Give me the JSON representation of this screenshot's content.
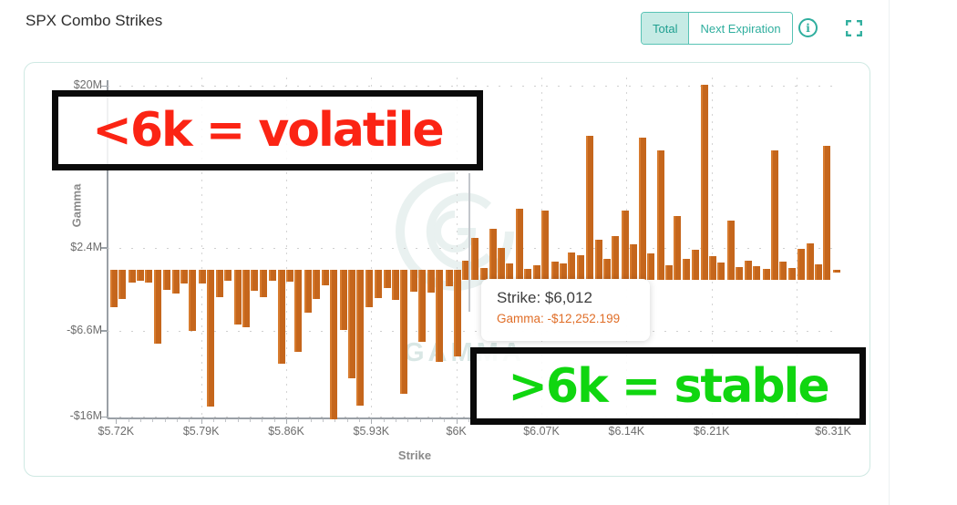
{
  "header": {
    "title": "SPX Combo Strikes",
    "toggle": {
      "options": [
        "Total",
        "Next Expiration"
      ],
      "selected": "Total"
    },
    "info_icon": "i",
    "fullscreen_icon": "expand-corners"
  },
  "colors": {
    "accent_teal": "#2fae9e",
    "toggle_selected_bg": "#c6ebe5",
    "bar_orange": "#c5661c",
    "tooltip_gamma_orange": "#e06e28",
    "annotation_red": "#fb2414",
    "annotation_green": "#10d610",
    "axis_gray": "#9aa0a6",
    "card_border": "#cfe9e3"
  },
  "tooltip": {
    "strike": "Strike: $6,012",
    "gamma": "Gamma: -$12,252.199"
  },
  "annotations": {
    "left": {
      "text": "<6k = volatile",
      "color": "#fb2414"
    },
    "right": {
      "text": ">6k = stable",
      "color": "#10d610"
    }
  },
  "watermark": {
    "text": "GAMMA"
  },
  "chart_data": {
    "type": "bar",
    "title": "SPX Combo Strikes",
    "xlabel": "Strike",
    "ylabel": "Gamma",
    "legend": "none",
    "grid": "dotted",
    "x_range": [
      5713,
      6313
    ],
    "y_range_millions": [
      -16.4,
      20.9
    ],
    "x_tick_strikes": [
      5720,
      5790,
      5860,
      5930,
      6000,
      6070,
      6140,
      6210,
      6310
    ],
    "x_tick_labels": [
      "$5.72K",
      "$5.79K",
      "$5.86K",
      "$5.93K",
      "$6K",
      "$6.07K",
      "$6.14K",
      "$6.21K",
      "$6.31K"
    ],
    "x_gridline_strikes": [
      5790,
      5860,
      5930,
      6000,
      6070,
      6140,
      6210,
      6280
    ],
    "minor_tick_step": 10,
    "y_tick_values_millions": [
      20,
      2.4,
      -6.6,
      -16
    ],
    "y_tick_labels": [
      "$20M",
      "$2.4M",
      "-$6.6M",
      "-$16M"
    ],
    "baseline_stub_millions": -1.05,
    "hovered_point": {
      "strike": 6012,
      "gamma": -12252.199
    },
    "series": [
      {
        "name": "Gamma",
        "unit": "$M",
        "strikes": [
          5718,
          5725,
          5733,
          5740,
          5747,
          5754,
          5762,
          5769,
          5776,
          5783,
          5791,
          5798,
          5805,
          5812,
          5820,
          5827,
          5834,
          5841,
          5849,
          5856,
          5863,
          5870,
          5878,
          5885,
          5892,
          5899,
          5907,
          5914,
          5921,
          5928,
          5936,
          5943,
          5950,
          5957,
          5965,
          5972,
          5979,
          5986,
          5994,
          6001,
          6008,
          6015,
          6023,
          6030,
          6037,
          6044,
          6052,
          6059,
          6066,
          6073,
          6081,
          6088,
          6095,
          6102,
          6110,
          6117,
          6124,
          6131,
          6139,
          6146,
          6153,
          6160,
          6168,
          6175,
          6182,
          6189,
          6197,
          6204,
          6211,
          6218,
          6226,
          6233,
          6240,
          6247,
          6255,
          6262,
          6269,
          6276,
          6284,
          6291,
          6298,
          6305,
          6313
        ],
        "values_millions": [
          -4.1,
          -3.2,
          -1.4,
          -1.2,
          -1.4,
          -8.0,
          -2.2,
          -2.6,
          -1.5,
          -6.6,
          -1.5,
          -14.9,
          -3.0,
          -1.2,
          -5.9,
          -6.2,
          -2.3,
          -3.0,
          -1.2,
          -10.2,
          -1.3,
          -8.9,
          -4.7,
          -3.2,
          -1.7,
          -16.4,
          -6.5,
          -11.8,
          -14.8,
          -4.1,
          -3.1,
          -2.0,
          -3.3,
          -13.5,
          -2.4,
          -7.8,
          -2.5,
          -10.0,
          -1.8,
          -9.4,
          1.0,
          3.5,
          0.2,
          4.5,
          2.4,
          0.7,
          6.6,
          0.1,
          0.5,
          6.4,
          0.9,
          0.7,
          1.9,
          1.6,
          14.6,
          3.3,
          1.2,
          3.7,
          6.4,
          2.8,
          14.4,
          1.8,
          13.0,
          0.5,
          5.8,
          1.2,
          2.2,
          20.1,
          1.5,
          0.8,
          5.4,
          0.3,
          1.0,
          0.4,
          0.1,
          13.0,
          0.9,
          0.2,
          2.3,
          2.9,
          0.6,
          13.5,
          -0.3
        ]
      }
    ]
  }
}
